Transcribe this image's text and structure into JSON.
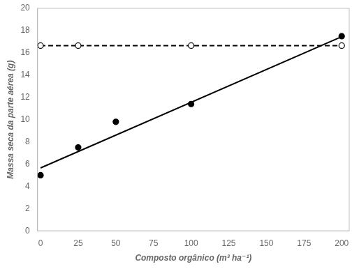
{
  "chart_data": {
    "type": "scatter",
    "xlabel": "Composto orgânico (m³ ha⁻¹)",
    "ylabel": "Massa seca da parte aérea (g)",
    "xlim": [
      -2,
      205
    ],
    "ylim": [
      0,
      20
    ],
    "xticks": [
      0,
      25,
      50,
      75,
      100,
      125,
      150,
      175,
      200
    ],
    "yticks": [
      0,
      2,
      4,
      6,
      8,
      10,
      12,
      14,
      16,
      18,
      20
    ],
    "grid": false,
    "series": [
      {
        "type": "line",
        "color": "#000000",
        "line_style": "solid",
        "x": [
          0,
          200
        ],
        "values": [
          5.65,
          17.45
        ]
      },
      {
        "type": "line",
        "color": "#000000",
        "line_style": "dashed",
        "x": [
          0,
          200
        ],
        "values": [
          16.65,
          16.65
        ]
      },
      {
        "type": "scatter",
        "color": "#000000",
        "marker": "circle",
        "x": [
          0,
          25,
          50,
          100,
          200
        ],
        "values": [
          5.0,
          7.5,
          9.8,
          11.4,
          17.5
        ]
      },
      {
        "type": "scatter",
        "color": "#000000",
        "marker": "open_circle",
        "x": [
          0,
          25,
          100,
          200
        ],
        "values": [
          16.65,
          16.65,
          16.65,
          16.65
        ]
      }
    ]
  }
}
